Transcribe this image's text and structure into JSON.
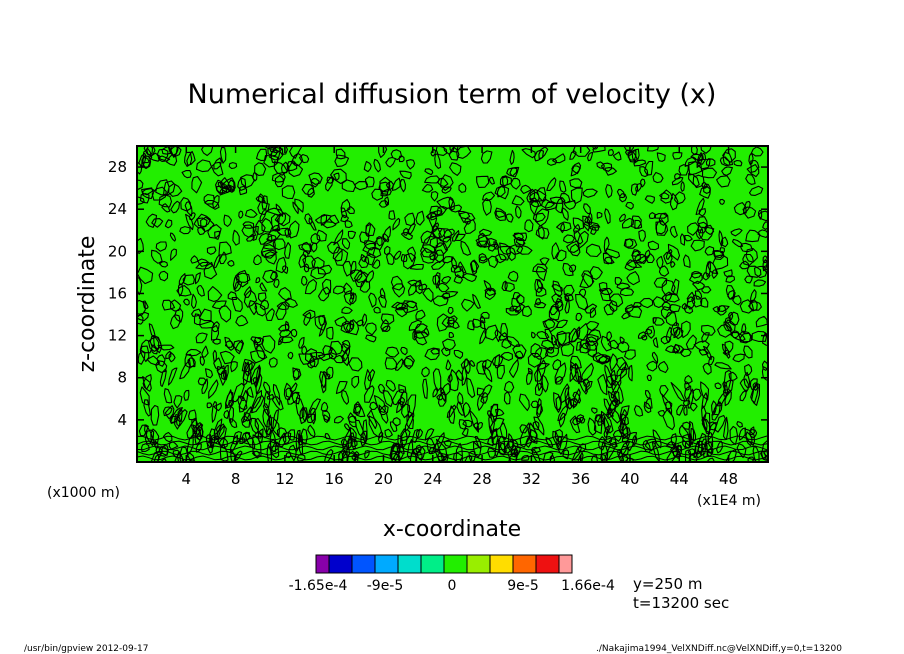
{
  "chart_data": {
    "type": "heatmap",
    "title": "Numerical diffusion term of velocity (x)",
    "xlabel": "x-coordinate",
    "ylabel": "z-coordinate",
    "x_unit_left": "(x1000 m)",
    "x_unit_right": "(x1E4 m)",
    "xlim": [
      0,
      51.2
    ],
    "ylim": [
      0,
      30
    ],
    "x_ticks": [
      4,
      8,
      12,
      16,
      20,
      24,
      28,
      32,
      36,
      40,
      44,
      48
    ],
    "y_ticks": [
      4,
      8,
      12,
      16,
      20,
      24,
      28
    ],
    "colorbar": {
      "colors": [
        "#8800aa",
        "#0000cc",
        "#0055ff",
        "#00aaff",
        "#00ddcc",
        "#00ee88",
        "#22ee00",
        "#99ee00",
        "#ffdd00",
        "#ff6600",
        "#ee1111",
        "#ff9999"
      ],
      "tick_labels": [
        "-1.65e-4",
        "-9e-5",
        "0",
        "9e-5",
        "1.66e-4"
      ],
      "field_color": "#22ee00",
      "line_color": "#000000"
    },
    "annotations": [
      "y=250 m",
      "t=13200 sec"
    ]
  },
  "footer": {
    "left": "/usr/bin/gpview   2012-09-17",
    "right": "./Nakajima1994_VelXNDiff.nc@VelXNDiff,y=0,t=13200"
  }
}
